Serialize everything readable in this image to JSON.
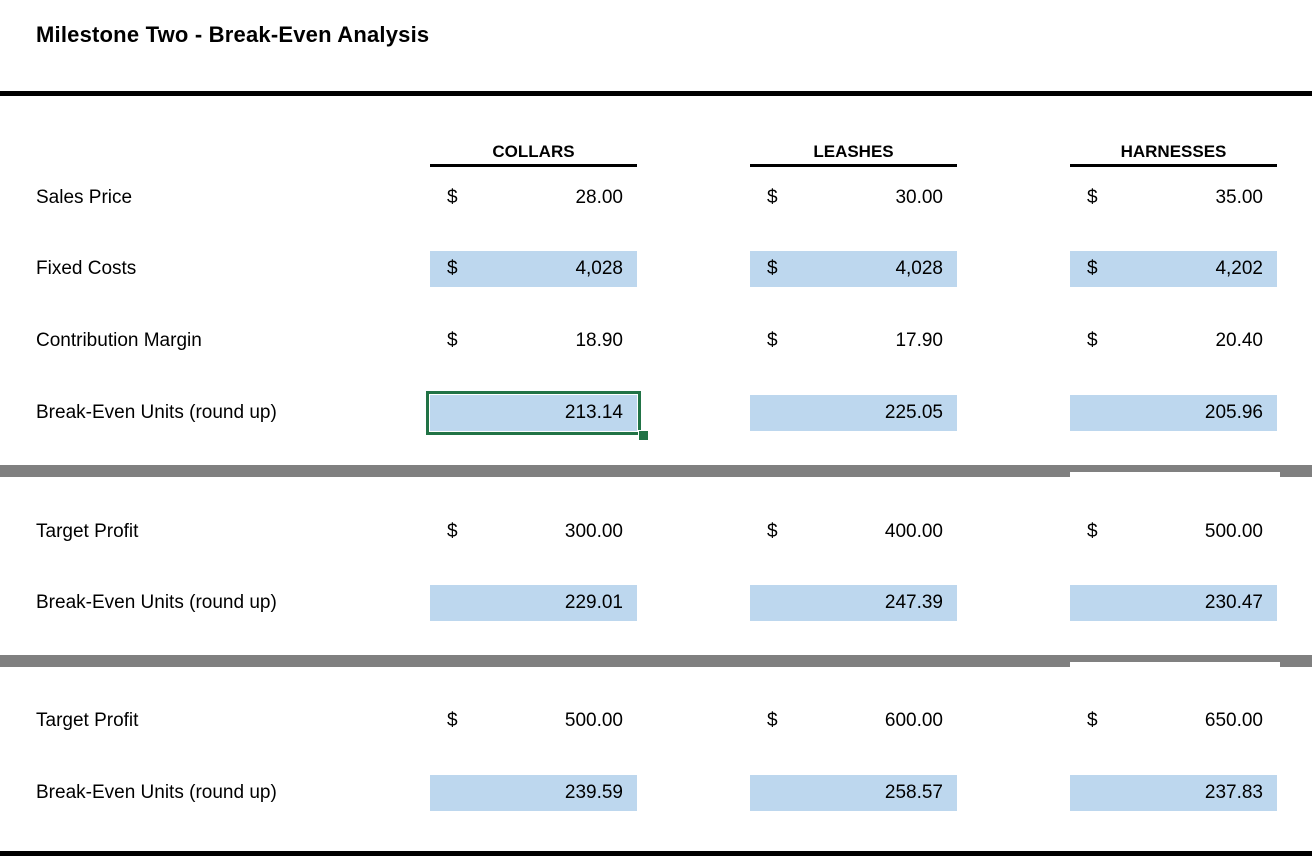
{
  "title": "Milestone Two - Break-Even Analysis",
  "columns": [
    {
      "label": "COLLARS"
    },
    {
      "label": "LEASHES"
    },
    {
      "label": "HARNESSES"
    }
  ],
  "colors": {
    "highlight_fill": "#BDD7EE",
    "divider_gray": "#808080",
    "selection_green": "#217346",
    "rule_black": "#000000"
  },
  "rows": {
    "sales_price": {
      "label": "Sales Price",
      "cells": [
        {
          "prefix": "$",
          "value": "28.00"
        },
        {
          "prefix": "$",
          "value": "30.00"
        },
        {
          "prefix": "$",
          "value": "35.00"
        }
      ]
    },
    "fixed_costs": {
      "label": "Fixed Costs",
      "cells": [
        {
          "prefix": "$",
          "value": "4,028"
        },
        {
          "prefix": "$",
          "value": "4,028"
        },
        {
          "prefix": "$",
          "value": "4,202"
        }
      ]
    },
    "contribution_margin": {
      "label": "Contribution Margin",
      "cells": [
        {
          "prefix": "$",
          "value": "18.90"
        },
        {
          "prefix": "$",
          "value": "17.90"
        },
        {
          "prefix": "$",
          "value": "20.40"
        }
      ]
    },
    "break_even_1": {
      "label": "Break-Even Units (round up)",
      "selected_column": "COLLARS",
      "cells": [
        {
          "value": "213.14"
        },
        {
          "value": "225.05"
        },
        {
          "value": "205.96"
        }
      ]
    },
    "target_profit_1": {
      "label": "Target Profit",
      "cells": [
        {
          "prefix": "$",
          "value": "300.00"
        },
        {
          "prefix": "$",
          "value": "400.00"
        },
        {
          "prefix": "$",
          "value": "500.00"
        }
      ]
    },
    "break_even_2": {
      "label": "Break-Even Units (round up)",
      "cells": [
        {
          "value": "229.01"
        },
        {
          "value": "247.39"
        },
        {
          "value": "230.47"
        }
      ]
    },
    "target_profit_2": {
      "label": "Target Profit",
      "cells": [
        {
          "prefix": "$",
          "value": "500.00"
        },
        {
          "prefix": "$",
          "value": "600.00"
        },
        {
          "prefix": "$",
          "value": "650.00"
        }
      ]
    },
    "break_even_3": {
      "label": "Break-Even Units (round up)",
      "cells": [
        {
          "value": "239.59"
        },
        {
          "value": "258.57"
        },
        {
          "value": "237.83"
        }
      ]
    }
  }
}
